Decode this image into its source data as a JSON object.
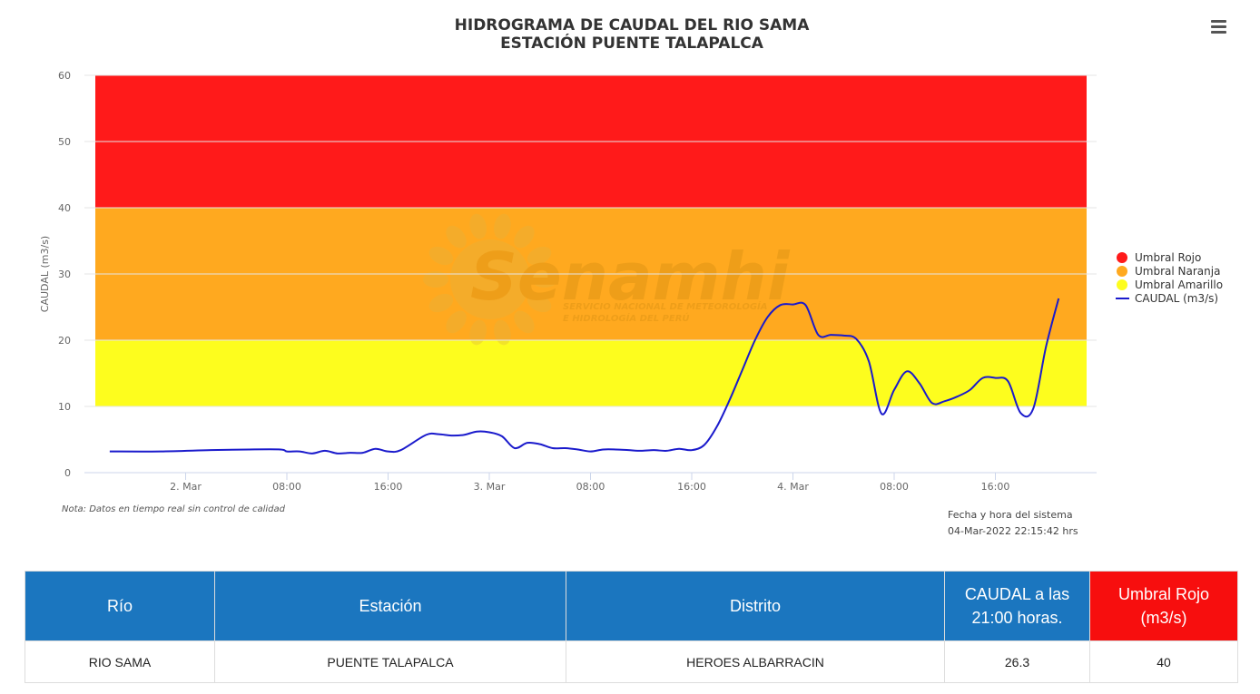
{
  "title_line1": "HIDROGRAMA DE CAUDAL DEL RIO SAMA",
  "title_line2": "ESTACIÓN PUENTE TALAPALCA",
  "note": "Nota: Datos en tiempo real sin control de calidad",
  "system_time_label": "Fecha y hora del sistema",
  "system_time_value": "04-Mar-2022 22:15:42 hrs",
  "watermark": {
    "brand": "Senamhi",
    "line1": "SERVICIO NACIONAL DE METEOROLOGÍA",
    "line2": "E HIDROLOGÍA DEL PERÚ"
  },
  "menu_icon": "hamburger-menu-icon",
  "chart_data": {
    "type": "line",
    "title": "HIDROGRAMA DE CAUDAL DEL RIO SAMA / ESTACIÓN PUENTE TALAPALCA",
    "xlabel": "",
    "ylabel": "CAUDAL (m3/s)",
    "ylim": [
      0,
      60
    ],
    "yticks": [
      0,
      10,
      20,
      30,
      40,
      50,
      60
    ],
    "xlim": [
      "2022-03-01 16:00",
      "2022-03-05 00:00"
    ],
    "xticks": [
      {
        "t": "2022-03-02 00:00",
        "label": "2. Mar"
      },
      {
        "t": "2022-03-02 08:00",
        "label": "08:00"
      },
      {
        "t": "2022-03-02 16:00",
        "label": "16:00"
      },
      {
        "t": "2022-03-03 00:00",
        "label": "3. Mar"
      },
      {
        "t": "2022-03-03 08:00",
        "label": "08:00"
      },
      {
        "t": "2022-03-03 16:00",
        "label": "16:00"
      },
      {
        "t": "2022-03-04 00:00",
        "label": "4. Mar"
      },
      {
        "t": "2022-03-04 08:00",
        "label": "08:00"
      },
      {
        "t": "2022-03-04 16:00",
        "label": "16:00"
      }
    ],
    "grid": true,
    "legend_position": "right",
    "bands": [
      {
        "name": "Umbral Rojo",
        "from": 40,
        "to": 60,
        "color": "#ff1a1a"
      },
      {
        "name": "Umbral Naranja",
        "from": 20,
        "to": 40,
        "color": "#ffa91f"
      },
      {
        "name": "Umbral Amarillo",
        "from": 10,
        "to": 20,
        "color": "#fdfd1e"
      }
    ],
    "series": [
      {
        "name": "CAUDAL (m3/s)",
        "color": "#1a1acc",
        "points": [
          [
            "2022-03-01 18:00",
            3.2
          ],
          [
            "2022-03-01 22:00",
            3.2
          ],
          [
            "2022-03-02 02:00",
            3.4
          ],
          [
            "2022-03-02 05:00",
            3.5
          ],
          [
            "2022-03-02 07:30",
            3.5
          ],
          [
            "2022-03-02 08:00",
            3.2
          ],
          [
            "2022-03-02 09:00",
            3.2
          ],
          [
            "2022-03-02 10:00",
            2.9
          ],
          [
            "2022-03-02 11:00",
            3.3
          ],
          [
            "2022-03-02 12:00",
            2.9
          ],
          [
            "2022-03-02 13:00",
            3.0
          ],
          [
            "2022-03-02 14:00",
            3.0
          ],
          [
            "2022-03-02 15:00",
            3.6
          ],
          [
            "2022-03-02 16:00",
            3.2
          ],
          [
            "2022-03-02 17:00",
            3.4
          ],
          [
            "2022-03-02 19:00",
            5.7
          ],
          [
            "2022-03-02 20:00",
            5.8
          ],
          [
            "2022-03-02 21:00",
            5.6
          ],
          [
            "2022-03-02 22:00",
            5.7
          ],
          [
            "2022-03-02 23:00",
            6.2
          ],
          [
            "2022-03-03 00:00",
            6.1
          ],
          [
            "2022-03-03 01:00",
            5.5
          ],
          [
            "2022-03-03 02:00",
            3.7
          ],
          [
            "2022-03-03 03:00",
            4.5
          ],
          [
            "2022-03-03 04:00",
            4.3
          ],
          [
            "2022-03-03 05:00",
            3.7
          ],
          [
            "2022-03-03 06:00",
            3.7
          ],
          [
            "2022-03-03 07:00",
            3.5
          ],
          [
            "2022-03-03 08:00",
            3.2
          ],
          [
            "2022-03-03 09:00",
            3.5
          ],
          [
            "2022-03-03 10:00",
            3.5
          ],
          [
            "2022-03-03 11:00",
            3.4
          ],
          [
            "2022-03-03 12:00",
            3.3
          ],
          [
            "2022-03-03 13:00",
            3.4
          ],
          [
            "2022-03-03 14:00",
            3.3
          ],
          [
            "2022-03-03 15:00",
            3.6
          ],
          [
            "2022-03-03 16:00",
            3.4
          ],
          [
            "2022-03-03 17:00",
            4.2
          ],
          [
            "2022-03-03 18:00",
            7.0
          ],
          [
            "2022-03-03 19:00",
            11.0
          ],
          [
            "2022-03-03 20:00",
            15.5
          ],
          [
            "2022-03-03 21:00",
            20.0
          ],
          [
            "2022-03-03 22:00",
            23.5
          ],
          [
            "2022-03-03 23:00",
            25.3
          ],
          [
            "2022-03-04 00:00",
            25.4
          ],
          [
            "2022-03-04 01:00",
            25.3
          ],
          [
            "2022-03-04 02:00",
            20.8
          ],
          [
            "2022-03-04 03:00",
            20.8
          ],
          [
            "2022-03-04 04:00",
            20.7
          ],
          [
            "2022-03-04 05:00",
            20.2
          ],
          [
            "2022-03-04 06:00",
            16.8
          ],
          [
            "2022-03-04 07:00",
            8.9
          ],
          [
            "2022-03-04 08:00",
            12.5
          ],
          [
            "2022-03-04 09:00",
            15.3
          ],
          [
            "2022-03-04 10:00",
            13.5
          ],
          [
            "2022-03-04 11:00",
            10.5
          ],
          [
            "2022-03-04 12:00",
            10.8
          ],
          [
            "2022-03-04 13:00",
            11.5
          ],
          [
            "2022-03-04 14:00",
            12.5
          ],
          [
            "2022-03-04 15:00",
            14.3
          ],
          [
            "2022-03-04 16:00",
            14.3
          ],
          [
            "2022-03-04 17:00",
            13.8
          ],
          [
            "2022-03-04 18:00",
            9.0
          ],
          [
            "2022-03-04 19:00",
            9.7
          ],
          [
            "2022-03-04 20:00",
            19.0
          ],
          [
            "2022-03-04 21:00",
            26.3
          ]
        ]
      }
    ]
  },
  "table": {
    "headers": [
      "Río",
      "Estación",
      "Distrito",
      "CAUDAL a las 21:00 horas.",
      "Umbral Rojo (m3/s)"
    ],
    "row": [
      "RIO SAMA",
      "PUENTE TALAPALCA",
      "HEROES ALBARRACIN",
      "26.3",
      "40"
    ]
  }
}
